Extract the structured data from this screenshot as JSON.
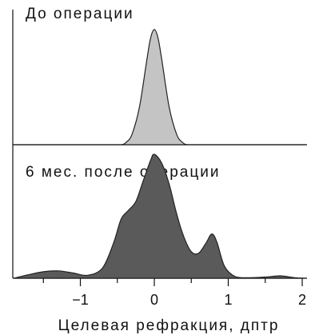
{
  "chart_data": [
    {
      "type": "area",
      "title": "До операции",
      "xlim": [
        -1.9,
        2.05
      ],
      "x": [
        -1.9,
        -0.6,
        -0.45,
        -0.38,
        -0.3,
        -0.2,
        -0.1,
        -0.05,
        0.0,
        0.05,
        0.1,
        0.2,
        0.3,
        0.38,
        0.45,
        0.6,
        2.05
      ],
      "y": [
        0,
        0,
        0,
        0.02,
        0.09,
        0.32,
        0.72,
        0.9,
        0.97,
        0.9,
        0.72,
        0.32,
        0.09,
        0.02,
        0,
        0,
        0
      ]
    },
    {
      "type": "area",
      "title": "6 мес. после операции",
      "xlim": [
        -1.9,
        2.05
      ],
      "x": [
        -1.9,
        -1.7,
        -1.5,
        -1.3,
        -1.1,
        -0.9,
        -0.7,
        -0.55,
        -0.45,
        -0.35,
        -0.25,
        -0.15,
        -0.05,
        0.0,
        0.1,
        0.2,
        0.3,
        0.4,
        0.5,
        0.6,
        0.7,
        0.78,
        0.85,
        0.95,
        1.1,
        1.3,
        1.5,
        1.7,
        1.9,
        2.05
      ],
      "y": [
        0,
        0.012,
        0.022,
        0.025,
        0.018,
        0.01,
        0.035,
        0.12,
        0.2,
        0.23,
        0.26,
        0.33,
        0.4,
        0.42,
        0.39,
        0.32,
        0.22,
        0.14,
        0.09,
        0.085,
        0.12,
        0.15,
        0.12,
        0.04,
        0.005,
        0.002,
        0.004,
        0.008,
        0.002,
        0
      ]
    }
  ],
  "x_axis": {
    "label": "Целевая рефракция, дптр",
    "ticks": [
      -1,
      0,
      1,
      2
    ],
    "tick_labels": [
      "−1",
      "0",
      "1",
      "2"
    ],
    "minor_ticks": [
      -1.5,
      -0.5,
      0.5,
      1.5
    ]
  },
  "colors": {
    "before_fill": "#c4c4c4",
    "after_fill": "#5a5a5a",
    "line": "#222222"
  }
}
